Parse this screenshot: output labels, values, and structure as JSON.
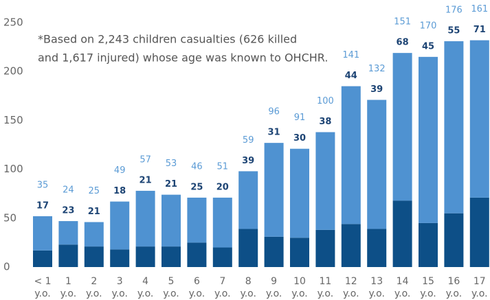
{
  "chart_data": {
    "type": "stacked_bar",
    "annotation": [
      "*Based on 2,243 children casualties (626 killed",
      "and 1,617 injured) whose age was known to OHCHR."
    ],
    "categories": [
      "< 1",
      "1",
      "2",
      "3",
      "4",
      "5",
      "6",
      "7",
      "8",
      "9",
      "10",
      "11",
      "12",
      "13",
      "14",
      "15",
      "16",
      "17"
    ],
    "category_suffix": "y.o.",
    "series": [
      {
        "color": "#0d4f87",
        "values": [
          17,
          23,
          21,
          18,
          21,
          21,
          25,
          20,
          39,
          31,
          30,
          38,
          44,
          39,
          68,
          45,
          55,
          71
        ]
      },
      {
        "color": "#4f92d1",
        "values": [
          35,
          24,
          25,
          49,
          57,
          53,
          46,
          51,
          59,
          96,
          91,
          100,
          141,
          132,
          151,
          170,
          176,
          161
        ]
      }
    ],
    "ylim": [
      0,
      250
    ],
    "yticks": [
      0,
      50,
      100,
      150,
      200,
      250
    ],
    "grid": false
  }
}
